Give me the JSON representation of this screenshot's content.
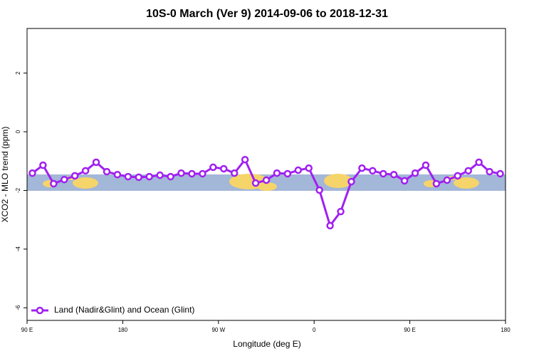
{
  "chart_data": {
    "type": "line",
    "title": "10S-0 March (Ver 9)   2014-09-06 to 2018-12-31",
    "x_label": "Longitude (deg E)",
    "y_label": "XCO2 - MLO trend (ppm)",
    "x": [
      95,
      105,
      115,
      125,
      135,
      145,
      155,
      165,
      175,
      185,
      195,
      205,
      215,
      225,
      235,
      245,
      255,
      265,
      275,
      285,
      295,
      305,
      315,
      325,
      335,
      345,
      355,
      365,
      375,
      385,
      395,
      405,
      415,
      425,
      435,
      445,
      455,
      465,
      475,
      485,
      495,
      505,
      515,
      525,
      535
    ],
    "series": [
      {
        "name": "Land (Nadir&Glint) and Ocean (Glint)",
        "color": "#a020f0",
        "values": [
          -1.41,
          -1.14,
          -1.77,
          -1.63,
          -1.5,
          -1.33,
          -1.04,
          -1.36,
          -1.46,
          -1.53,
          -1.55,
          -1.53,
          -1.48,
          -1.53,
          -1.41,
          -1.43,
          -1.43,
          -1.21,
          -1.26,
          -1.41,
          -0.95,
          -1.75,
          -1.65,
          -1.41,
          -1.43,
          -1.31,
          -1.24,
          -1.99,
          -3.2,
          -2.72,
          -1.7,
          -1.24,
          -1.33,
          -1.43,
          -1.46,
          -1.67,
          -1.41,
          -1.14,
          -1.77,
          -1.65,
          -1.5,
          -1.33,
          -1.04,
          -1.36,
          -1.43
        ]
      }
    ],
    "xlim": [
      90,
      540
    ],
    "xticks": [
      {
        "value": 90,
        "label": "90 E"
      },
      180,
      {
        "value": 270,
        "label": "90 W"
      },
      {
        "value": 360,
        "label": "0"
      },
      {
        "value": 450,
        "label": "90 E"
      },
      {
        "value": 540,
        "label": "180"
      }
    ],
    "ylim": [
      -6.43,
      3.52
    ],
    "yticks": [
      -6,
      -4,
      -2,
      0,
      2
    ],
    "legend": "lower left"
  }
}
